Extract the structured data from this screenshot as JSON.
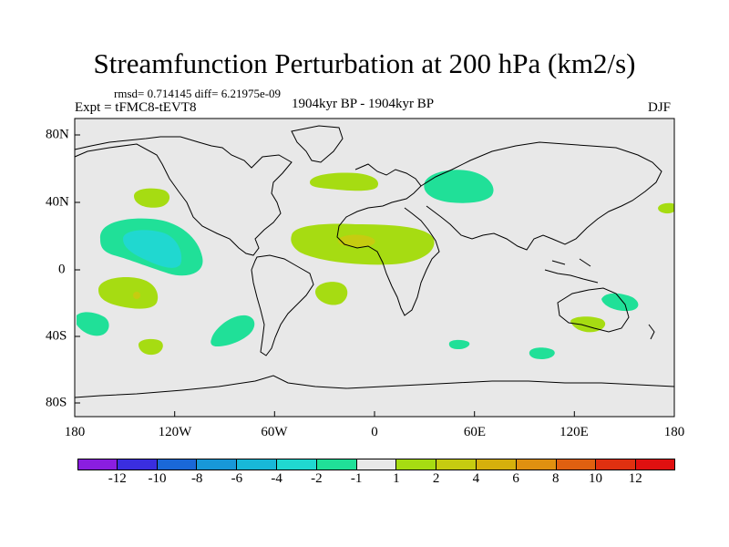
{
  "title": "Streamfunction Perturbation at 200 hPa (km2/s)",
  "stats": "rmsd= 0.714145 diff= 6.21975e-09",
  "expt": "Expt = tFMC8-tEVT8",
  "period": "1904kyr BP - 1904kyr BP",
  "season": "DJF",
  "lon_labels": [
    "180",
    "120W",
    "60W",
    "0",
    "60E",
    "120E",
    "180"
  ],
  "lat_labels": [
    "80N",
    "40N",
    "0",
    "40S",
    "80S"
  ],
  "colorbar": {
    "colors": [
      "#8a1ee0",
      "#3a2ee0",
      "#1a68d8",
      "#1898d8",
      "#18b8d8",
      "#20d8d0",
      "#20e098",
      "#e8e8e8",
      "#a6dc12",
      "#c6cc10",
      "#d6b00c",
      "#e09010",
      "#e06010",
      "#e03010",
      "#e01010"
    ],
    "labels": [
      "-12",
      "-10",
      "-8",
      "-6",
      "-4",
      "-2",
      "-1",
      "1",
      "2",
      "4",
      "6",
      "8",
      "10",
      "12"
    ]
  },
  "colors": {
    "ocean_land_bg": "#e8e8e8",
    "positive_fill": "#a6dc12",
    "negative_fill": "#20e098",
    "negative_core": "#20d8d0",
    "positive_core": "#c6cc10"
  }
}
